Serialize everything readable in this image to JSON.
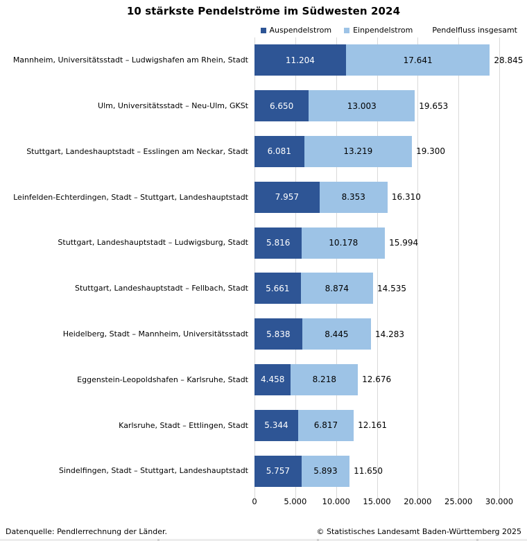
{
  "title": "10 stärkste Pendelströme im Südwesten 2024",
  "legend": {
    "items": [
      {
        "label": "Auspendelstrom",
        "color": "#2e5595"
      },
      {
        "label": "Einpendelstrom",
        "color": "#9dc3e6"
      },
      {
        "label": "Pendelfluss insgesamt",
        "color": null
      }
    ]
  },
  "colors": {
    "auspendelstrom": "#2e5595",
    "einpendelstrom": "#9dc3e6",
    "gridline": "#d9d9d9",
    "label_on_dark": "#ffffff",
    "text": "#000000"
  },
  "chart_data": {
    "type": "bar",
    "orientation": "horizontal",
    "stacked": true,
    "title": "10 stärkste Pendelströme im Südwesten 2024",
    "xlabel": "",
    "ylabel": "",
    "xlim": [
      0,
      30000
    ],
    "grid": true,
    "legend_position": "top",
    "number_format": "de-DE",
    "categories": [
      "Mannheim, Universitätsstadt – Ludwigshafen am Rhein, Stadt",
      "Ulm, Universitätsstadt – Neu-Ulm, GKSt",
      "Stuttgart, Landeshauptstadt – Esslingen am Neckar, Stadt",
      "Leinfelden-Echterdingen, Stadt – Stuttgart, Landeshauptstadt",
      "Stuttgart, Landeshauptstadt – Ludwigsburg, Stadt",
      "Stuttgart, Landeshauptstadt – Fellbach, Stadt",
      "Heidelberg, Stadt – Mannheim, Universitätsstadt",
      "Eggenstein-Leopoldshafen – Karlsruhe, Stadt",
      "Karlsruhe, Stadt – Ettlingen, Stadt",
      "Sindelfingen, Stadt – Stuttgart, Landeshauptstadt"
    ],
    "series": [
      {
        "name": "Auspendelstrom",
        "values": [
          11204,
          6650,
          6081,
          7957,
          5816,
          5661,
          5838,
          4458,
          5344,
          5757
        ],
        "labels": [
          "11.204",
          "6.650",
          "6.081",
          "7.957",
          "5.816",
          "5.661",
          "5.838",
          "4.458",
          "5.344",
          "5.757"
        ]
      },
      {
        "name": "Einpendelstrom",
        "values": [
          17641,
          13003,
          13219,
          8353,
          10178,
          8874,
          8445,
          8218,
          6817,
          5893
        ],
        "labels": [
          "17.641",
          "13.003",
          "13.219",
          "8.353",
          "10.178",
          "8.874",
          "8.445",
          "8.218",
          "6.817",
          "5.893"
        ]
      }
    ],
    "totals": {
      "name": "Pendelfluss insgesamt",
      "values": [
        28845,
        19653,
        19300,
        16310,
        15994,
        14535,
        14283,
        12676,
        12161,
        11650
      ],
      "labels": [
        "28.845",
        "19.653",
        "19.300",
        "16.310",
        "15.994",
        "14.535",
        "14.283",
        "12.676",
        "12.161",
        "11.650"
      ]
    },
    "xticks": [
      {
        "value": 0,
        "label": "0"
      },
      {
        "value": 5000,
        "label": "5.000"
      },
      {
        "value": 10000,
        "label": "10.000"
      },
      {
        "value": 15000,
        "label": "15.000"
      },
      {
        "value": 20000,
        "label": "20.000"
      },
      {
        "value": 25000,
        "label": "25.000"
      },
      {
        "value": 30000,
        "label": "30.000"
      }
    ]
  },
  "footer": {
    "source": "Datenquelle: Pendlerrechnung der Länder.",
    "copyright": "© Statistisches Landesamt Baden-Württemberg 2025"
  }
}
